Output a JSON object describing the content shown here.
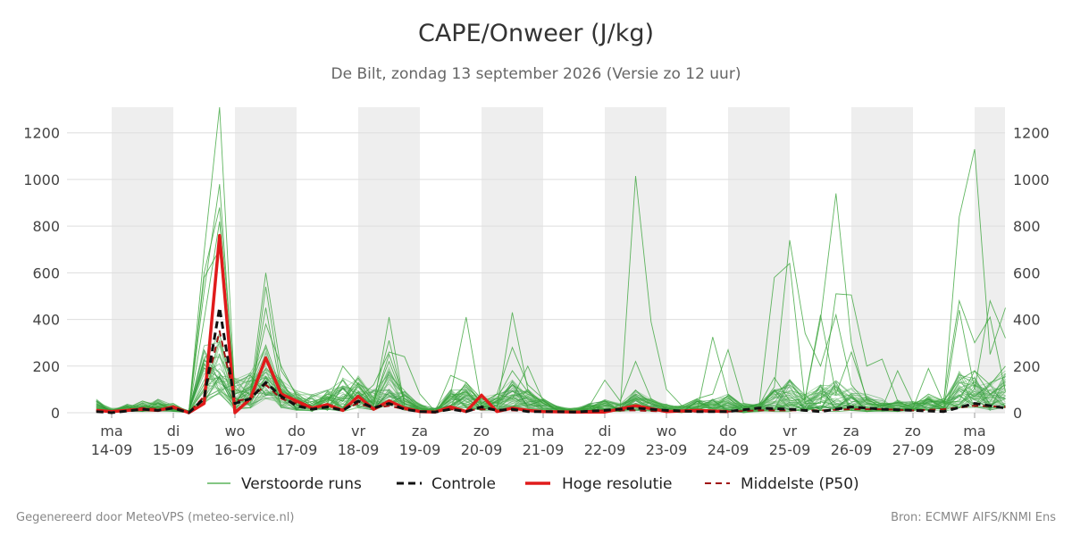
{
  "header": {
    "title": "CAPE/Onweer (J/kg)",
    "subtitle": "De Bilt, zondag 13 september 2026 (Versie zo 12 uur)"
  },
  "footer": {
    "left": "Gegenereerd door MeteoVPS (meteo-service.nl)",
    "right": "Bron: ECMWF AIFS/KNMI Ens"
  },
  "colors": {
    "ensemble": "#3aa43a",
    "control": "#111111",
    "hires": "#e01b1b",
    "median": "#a01010",
    "weekend_band": "#eeeeee",
    "grid": "#dddddd"
  },
  "chart_data": {
    "type": "line",
    "x_unit": "days since 14-09-2026 00:00",
    "ylim": [
      0,
      1310
    ],
    "yticks": [
      0,
      200,
      400,
      600,
      800,
      1000,
      1200
    ],
    "grid": true,
    "legend_position": "bottom",
    "day_ticks": [
      {
        "day": "ma",
        "date": "14-09"
      },
      {
        "day": "di",
        "date": "15-09"
      },
      {
        "day": "wo",
        "date": "16-09"
      },
      {
        "day": "do",
        "date": "17-09"
      },
      {
        "day": "vr",
        "date": "18-09"
      },
      {
        "day": "za",
        "date": "19-09"
      },
      {
        "day": "zo",
        "date": "20-09"
      },
      {
        "day": "ma",
        "date": "21-09"
      },
      {
        "day": "di",
        "date": "22-09"
      },
      {
        "day": "wo",
        "date": "23-09"
      },
      {
        "day": "do",
        "date": "24-09"
      },
      {
        "day": "vr",
        "date": "25-09"
      },
      {
        "day": "za",
        "date": "26-09"
      },
      {
        "day": "zo",
        "date": "27-09"
      },
      {
        "day": "ma",
        "date": "28-09"
      }
    ],
    "shaded_bands": [
      [
        0,
        1
      ],
      [
        2,
        3
      ],
      [
        4,
        5
      ],
      [
        6,
        7
      ],
      [
        8,
        9
      ],
      [
        10,
        11
      ],
      [
        12,
        13
      ],
      [
        14,
        14.5
      ]
    ],
    "legend": [
      "Verstoorde runs",
      "Controle",
      "Hoge resolutie",
      "Middelste (P50)"
    ],
    "series": [
      {
        "name": "Controle",
        "style": "dashed",
        "x": [
          -0.25,
          0,
          0.5,
          0.75,
          1,
          1.25,
          1.5,
          1.75,
          2,
          2.25,
          2.5,
          2.75,
          3,
          3.25,
          3.5,
          3.75,
          4,
          4.25,
          4.5,
          4.75,
          5,
          5.25,
          5.5,
          5.75,
          6,
          6.25,
          6.5,
          6.75,
          7,
          7.5,
          8,
          8.5,
          9,
          9.5,
          10,
          10.5,
          11,
          11.5,
          12,
          12.5,
          13,
          13.5,
          14,
          14.5
        ],
        "y": [
          5,
          0,
          15,
          10,
          20,
          0,
          60,
          450,
          40,
          60,
          130,
          70,
          30,
          15,
          25,
          10,
          50,
          20,
          40,
          15,
          5,
          3,
          15,
          5,
          25,
          10,
          15,
          5,
          5,
          3,
          10,
          20,
          10,
          5,
          5,
          20,
          15,
          5,
          25,
          15,
          10,
          5,
          40,
          20
        ]
      },
      {
        "name": "Hoge resolutie",
        "style": "solid",
        "x": [
          -0.25,
          0,
          0.5,
          0.75,
          1,
          1.25,
          1.5,
          1.75,
          2,
          2.25,
          2.5,
          2.75,
          3,
          3.25,
          3.5,
          3.75,
          4,
          4.25,
          4.5,
          4.75,
          5,
          5.25,
          5.5,
          5.75,
          6,
          6.25,
          6.5,
          6.75,
          7,
          7.5,
          8,
          8.5,
          9,
          9.5,
          10
        ],
        "y": [
          10,
          5,
          15,
          10,
          25,
          0,
          40,
          760,
          0,
          60,
          235,
          80,
          50,
          20,
          35,
          10,
          70,
          15,
          50,
          20,
          5,
          3,
          25,
          5,
          75,
          5,
          20,
          10,
          5,
          3,
          3,
          30,
          5,
          10,
          5
        ]
      },
      {
        "name": "Middelste (P50)",
        "style": "dashed",
        "x": [
          -0.25,
          0,
          0.5,
          0.75,
          1,
          1.25,
          1.5,
          1.75,
          2,
          2.25,
          2.5,
          2.75,
          3,
          3.25,
          3.5,
          3.75,
          4,
          4.25,
          4.5,
          4.75,
          5,
          5.25,
          5.5,
          5.75,
          6,
          6.5,
          7,
          7.5,
          8,
          8.5,
          9,
          9.5,
          10,
          10.5,
          11,
          11.5,
          12,
          12.5,
          13,
          13.5,
          14,
          14.5
        ],
        "y": [
          10,
          5,
          20,
          15,
          20,
          0,
          70,
          350,
          50,
          60,
          120,
          60,
          40,
          20,
          30,
          15,
          40,
          20,
          30,
          15,
          5,
          5,
          15,
          10,
          15,
          10,
          5,
          5,
          10,
          10,
          5,
          5,
          5,
          10,
          10,
          10,
          15,
          15,
          10,
          15,
          30,
          25
        ]
      }
    ],
    "ensemble": {
      "name": "Verstoorde runs",
      "member_count": 50,
      "x": [
        -0.25,
        0,
        0.25,
        0.5,
        0.75,
        1,
        1.25,
        1.5,
        1.75,
        2,
        2.25,
        2.5,
        2.75,
        3,
        3.25,
        3.5,
        3.75,
        4,
        4.25,
        4.5,
        4.75,
        5,
        5.25,
        5.5,
        5.75,
        6,
        6.25,
        6.5,
        6.75,
        7,
        7.25,
        7.5,
        7.75,
        8,
        8.25,
        8.5,
        8.75,
        9,
        9.25,
        9.5,
        9.75,
        10,
        10.25,
        10.5,
        10.75,
        11,
        11.25,
        11.5,
        11.75,
        12,
        12.25,
        12.5,
        12.75,
        13,
        13.25,
        13.5,
        13.75,
        14,
        14.25,
        14.5
      ],
      "peak_members": [
        {
          "y": [
            20,
            5,
            10,
            30,
            20,
            30,
            0,
            690,
            1310,
            80,
            110,
            290,
            100,
            50,
            30,
            60,
            20,
            90,
            40,
            250,
            60,
            20,
            5,
            30,
            130,
            60,
            40,
            120,
            80,
            50,
            10,
            5,
            10,
            30,
            20,
            40,
            15,
            10,
            5,
            20,
            10,
            15,
            5,
            10,
            5,
            5,
            20,
            10,
            5,
            10,
            5,
            10,
            5,
            20,
            10,
            40,
            50,
            180,
            80,
            120
          ]
        },
        {
          "y": [
            10,
            5,
            15,
            20,
            25,
            20,
            0,
            520,
            980,
            60,
            40,
            540,
            120,
            60,
            20,
            40,
            200,
            120,
            30,
            410,
            30,
            10,
            10,
            80,
            410,
            30,
            20,
            430,
            100,
            40,
            10,
            20,
            15,
            30,
            20,
            1015,
            390,
            100,
            30,
            10,
            325,
            80,
            30,
            20,
            580,
            640,
            40,
            40,
            510,
            505,
            200,
            230,
            50,
            20,
            190,
            40,
            840,
            1130,
            250,
            450
          ]
        },
        {
          "y": [
            40,
            10,
            20,
            50,
            30,
            40,
            0,
            600,
            880,
            100,
            80,
            600,
            180,
            80,
            40,
            80,
            60,
            150,
            60,
            310,
            40,
            15,
            5,
            60,
            120,
            40,
            80,
            280,
            120,
            60,
            20,
            10,
            30,
            140,
            50,
            220,
            60,
            20,
            30,
            60,
            80,
            270,
            40,
            30,
            150,
            50,
            60,
            420,
            80,
            260,
            60,
            20,
            180,
            40,
            40,
            60,
            480,
            300,
            410,
            90
          ]
        },
        {
          "y": [
            30,
            5,
            30,
            10,
            40,
            10,
            0,
            580,
            700,
            40,
            70,
            450,
            90,
            40,
            20,
            50,
            140,
            60,
            120,
            260,
            240,
            80,
            5,
            160,
            130,
            40,
            80,
            60,
            200,
            50,
            10,
            5,
            20,
            50,
            10,
            60,
            40,
            20,
            10,
            30,
            20,
            30,
            10,
            20,
            110,
            740,
            340,
            200,
            420,
            120,
            40,
            30,
            20,
            40,
            60,
            20,
            440,
            100,
            480,
            320
          ]
        },
        {
          "y": [
            25,
            10,
            15,
            35,
            15,
            25,
            0,
            400,
            820,
            50,
            90,
            380,
            200,
            70,
            30,
            70,
            50,
            130,
            50,
            220,
            50,
            20,
            10,
            70,
            90,
            30,
            60,
            180,
            90,
            40,
            15,
            10,
            20,
            40,
            30,
            80,
            50,
            30,
            20,
            40,
            30,
            60,
            20,
            30,
            90,
            120,
            60,
            400,
            940,
            300,
            50,
            40,
            40,
            30,
            80,
            50,
            140,
            180,
            120,
            200
          ]
        }
      ],
      "band": {
        "low": [
          5,
          0,
          5,
          5,
          5,
          5,
          0,
          40,
          80,
          10,
          20,
          60,
          20,
          10,
          5,
          10,
          5,
          20,
          10,
          30,
          10,
          5,
          0,
          10,
          20,
          10,
          10,
          20,
          15,
          10,
          0,
          0,
          5,
          5,
          5,
          10,
          5,
          5,
          0,
          5,
          5,
          5,
          0,
          5,
          10,
          10,
          5,
          10,
          10,
          10,
          5,
          5,
          5,
          5,
          10,
          5,
          20,
          20,
          10,
          20
        ],
        "high": [
          60,
          20,
          40,
          50,
          60,
          40,
          10,
          300,
          350,
          150,
          200,
          300,
          150,
          100,
          80,
          100,
          150,
          160,
          100,
          200,
          100,
          40,
          20,
          100,
          120,
          80,
          80,
          150,
          100,
          60,
          30,
          20,
          40,
          60,
          40,
          100,
          60,
          40,
          30,
          60,
          60,
          80,
          40,
          40,
          100,
          150,
          80,
          120,
          150,
          130,
          80,
          60,
          60,
          50,
          80,
          60,
          180,
          160,
          140,
          180
        ]
      }
    }
  }
}
